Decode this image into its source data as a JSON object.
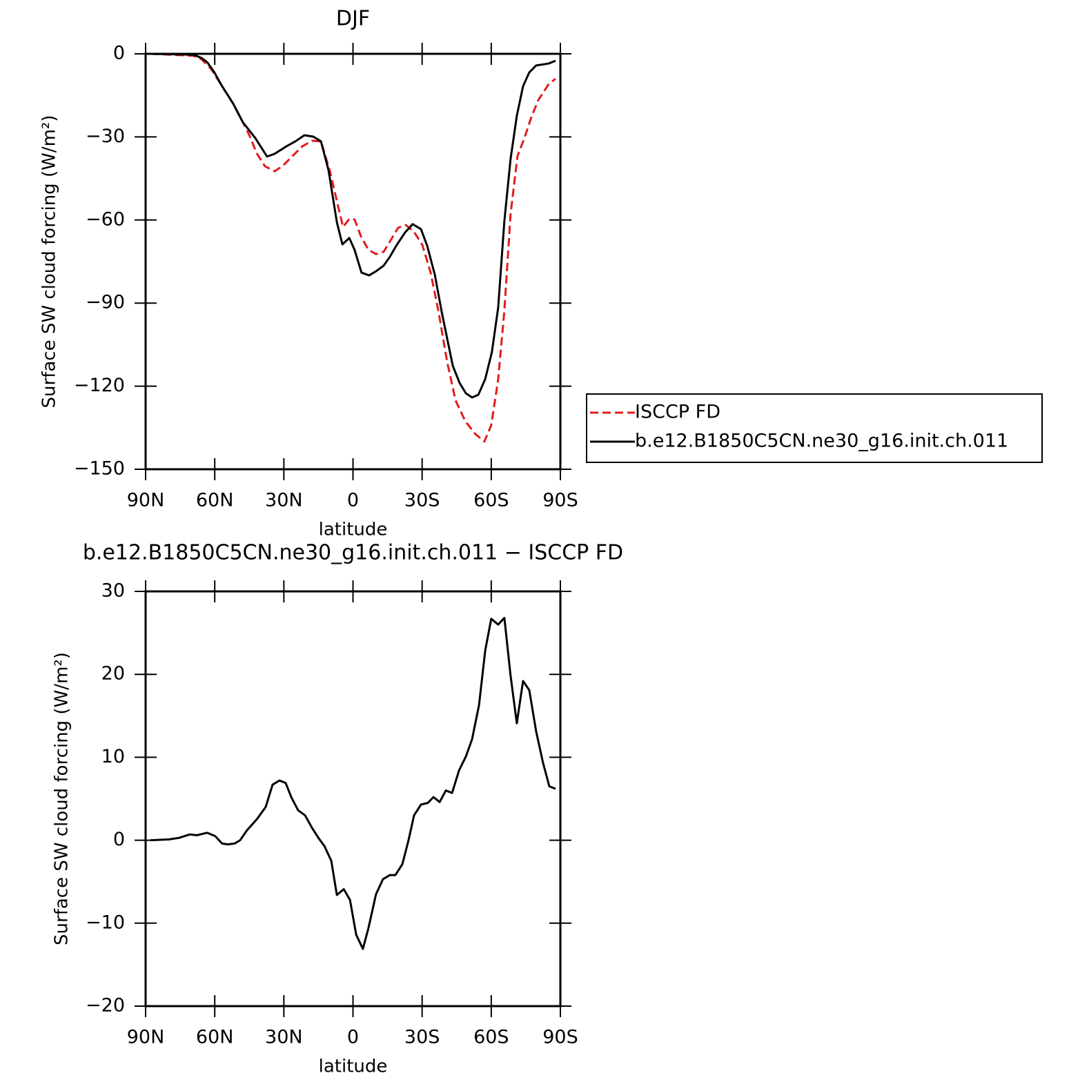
{
  "chart_data": [
    {
      "type": "line",
      "title": "DJF",
      "xlabel": "latitude",
      "ylabel": "Surface SW cloud forcing (W/m²)",
      "xlim": [
        90,
        -90
      ],
      "xticks": [
        {
          "value": 90,
          "label": "90N"
        },
        {
          "value": 60,
          "label": "60N"
        },
        {
          "value": 30,
          "label": "30N"
        },
        0,
        {
          "value": -30,
          "label": "30S"
        },
        {
          "value": -60,
          "label": "60S"
        },
        {
          "value": -90,
          "label": "90S"
        }
      ],
      "ylim": [
        -150,
        0
      ],
      "yticks": [
        0,
        {
          "value": -30,
          "label": "−30"
        },
        {
          "value": -60,
          "label": "−60"
        },
        {
          "value": -90,
          "label": "−90"
        },
        {
          "value": -120,
          "label": "−120"
        },
        {
          "value": -150,
          "label": "−150"
        }
      ],
      "legend": "right",
      "series": [
        {
          "name": "ISCCP FD",
          "color": "#e41a1c",
          "linestyle": "dashed",
          "x": [
            87.9,
            69.3,
            65.7,
            61.5,
            56.8,
            52,
            47.8,
            44.8,
            41.8,
            38.2,
            34,
            30.4,
            25.9,
            22,
            17.8,
            13.9,
            10,
            6.4,
            4.3,
            1.6,
            -0.7,
            -3.4,
            -6.7,
            -10,
            -13.3,
            -16,
            -19.6,
            -22.9,
            -26.5,
            -30.1,
            -33.7,
            -37.3,
            -40.9,
            -44.5,
            -48.7,
            -52.9,
            -57,
            -60,
            -63,
            -65.7,
            -68.4,
            -71.4,
            -74.4,
            -77.4,
            -80.4,
            -84.9,
            -87.9
          ],
          "values": [
            0,
            -0.7,
            -2,
            -5.5,
            -11.7,
            -18,
            -24.7,
            -29.7,
            -35.9,
            -40.6,
            -42.4,
            -40.4,
            -36.6,
            -33.4,
            -31.4,
            -31.6,
            -42.4,
            -55.3,
            -62.5,
            -59.6,
            -59.8,
            -65.8,
            -70.8,
            -72.3,
            -71.5,
            -67.8,
            -62.8,
            -61.8,
            -64.3,
            -69,
            -79,
            -93.9,
            -111.4,
            -125.1,
            -132.6,
            -137.1,
            -140,
            -134.1,
            -117.6,
            -92.7,
            -57.8,
            -36.9,
            -30.4,
            -22.9,
            -16.7,
            -11,
            -9
          ]
        },
        {
          "name": "b.e12.B1850C5CN.ne30_g16.init.ch.011",
          "color": "#000000",
          "linestyle": "solid",
          "x": [
            87.9,
            69.3,
            65.7,
            63.3,
            60.3,
            56.8,
            52,
            47.8,
            42.4,
            37.3,
            34,
            28.9,
            25,
            21.1,
            17.2,
            13.9,
            10.6,
            7,
            4.6,
            1.6,
            -0.7,
            -3.7,
            -7,
            -10,
            -13.3,
            -16,
            -19,
            -22.6,
            -25.9,
            -29.5,
            -32.2,
            -35.5,
            -38.5,
            -43.3,
            -46.3,
            -49,
            -51.7,
            -54.4,
            -57.4,
            -60.3,
            -63,
            -65.7,
            -68.4,
            -71.1,
            -73.8,
            -76.5,
            -79.5,
            -84.9,
            -87.9
          ],
          "values": [
            0,
            -0.3,
            -1.5,
            -3,
            -6.5,
            -11.7,
            -18,
            -24.7,
            -30.4,
            -37.1,
            -36.1,
            -33.4,
            -31.6,
            -29.4,
            -29.9,
            -31.6,
            -42.1,
            -60.8,
            -68.8,
            -66.5,
            -70.8,
            -79,
            -80,
            -78.5,
            -76.5,
            -73.3,
            -69,
            -64.5,
            -61.5,
            -63.3,
            -69.3,
            -79.7,
            -93.2,
            -112.6,
            -118.9,
            -122.6,
            -124.1,
            -123.1,
            -117.4,
            -107.6,
            -91.7,
            -60.3,
            -37.9,
            -22.4,
            -11.7,
            -6.7,
            -4.2,
            -3.5,
            -2.5
          ]
        }
      ]
    },
    {
      "type": "line",
      "title": "b.e12.B1850C5CN.ne30_g16.init.ch.011 − ISCCP FD",
      "xlabel": "latitude",
      "ylabel": "Surface SW cloud forcing (W/m²)",
      "xlim": [
        90,
        -90
      ],
      "xticks": [
        {
          "value": 90,
          "label": "90N"
        },
        {
          "value": 60,
          "label": "60N"
        },
        {
          "value": 30,
          "label": "30N"
        },
        0,
        {
          "value": -30,
          "label": "30S"
        },
        {
          "value": -60,
          "label": "60S"
        },
        {
          "value": -90,
          "label": "90S"
        }
      ],
      "ylim": [
        -20,
        30
      ],
      "yticks": [
        30,
        20,
        10,
        0,
        {
          "value": -10,
          "label": "−10"
        },
        {
          "value": -20,
          "label": "−20"
        }
      ],
      "color": "#000000",
      "x": [
        87.9,
        79.8,
        75.3,
        70.8,
        67.8,
        63.3,
        59.8,
        56.8,
        54.4,
        51.4,
        49,
        46,
        41.8,
        37.9,
        34.9,
        31.9,
        29.2,
        26.8,
        23.8,
        20.8,
        17.8,
        14.8,
        12.4,
        9.4,
        7,
        4,
        1.3,
        -1.4,
        -4.3,
        -6.7,
        -10,
        -13,
        -16,
        -18.4,
        -21.4,
        -24.1,
        -26.5,
        -29.5,
        -32.5,
        -34.9,
        -37.6,
        -40.3,
        -43,
        -46,
        -49,
        -51.7,
        -54.7,
        -57.4,
        -60,
        -63,
        -65.7,
        -68.4,
        -71.1,
        -73.8,
        -76.5,
        -79.5,
        -82.5,
        -85.2,
        -87.9
      ],
      "values": [
        0,
        0.1,
        0.3,
        0.7,
        0.6,
        0.9,
        0.5,
        -0.4,
        -0.5,
        -0.4,
        0,
        1.2,
        2.5,
        4,
        6.7,
        7.2,
        6.9,
        5.2,
        3.6,
        3,
        1.5,
        0.2,
        -0.7,
        -2.5,
        -6.6,
        -5.9,
        -7.2,
        -11.4,
        -13.1,
        -10.6,
        -6.5,
        -4.7,
        -4.2,
        -4.2,
        -2.9,
        0,
        3,
        4.3,
        4.5,
        5.2,
        4.6,
        6,
        5.7,
        8.4,
        10.1,
        12.2,
        16.3,
        22.9,
        26.7,
        26,
        26.8,
        19.8,
        14.1,
        19.2,
        18.1,
        13.1,
        9.3,
        6.5,
        6.2
      ]
    }
  ]
}
